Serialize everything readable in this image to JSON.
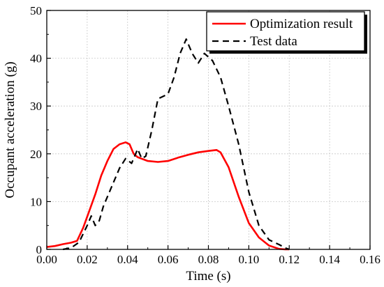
{
  "chart_data": {
    "type": "line",
    "title": "",
    "xlabel": "Time (s)",
    "ylabel": "Occupant acceleration (g)",
    "xlim": [
      0,
      0.16
    ],
    "ylim": [
      0,
      50
    ],
    "xticks": [
      "0.00",
      "0.02",
      "0.04",
      "0.06",
      "0.08",
      "0.10",
      "0.12",
      "0.14",
      "0.16"
    ],
    "yticks": [
      "0",
      "10",
      "20",
      "30",
      "40",
      "50"
    ],
    "grid": true,
    "legend_position": "top-right",
    "series": [
      {
        "name": "Optimization result",
        "color": "#ff0000",
        "style": "solid",
        "x": [
          0.0,
          0.004,
          0.008,
          0.012,
          0.015,
          0.018,
          0.021,
          0.024,
          0.027,
          0.03,
          0.033,
          0.036,
          0.039,
          0.041,
          0.043,
          0.045,
          0.05,
          0.055,
          0.06,
          0.065,
          0.07,
          0.075,
          0.08,
          0.084,
          0.086,
          0.09,
          0.095,
          0.1,
          0.105,
          0.11,
          0.115,
          0.118,
          0.12
        ],
        "y": [
          0.5,
          0.7,
          1.1,
          1.4,
          1.8,
          4.5,
          8.0,
          11.5,
          15.5,
          18.5,
          21.0,
          22.0,
          22.4,
          22.0,
          20.0,
          19.3,
          18.5,
          18.3,
          18.5,
          19.2,
          19.8,
          20.3,
          20.6,
          20.8,
          20.3,
          17.2,
          11.0,
          5.5,
          2.5,
          0.8,
          0.1,
          0.0,
          0.0
        ]
      },
      {
        "name": "Test data",
        "color": "#000000",
        "style": "dashed",
        "x": [
          0.008,
          0.012,
          0.016,
          0.02,
          0.022,
          0.024,
          0.026,
          0.028,
          0.031,
          0.033,
          0.036,
          0.039,
          0.042,
          0.045,
          0.047,
          0.049,
          0.052,
          0.055,
          0.06,
          0.063,
          0.066,
          0.069,
          0.072,
          0.075,
          0.078,
          0.082,
          0.086,
          0.09,
          0.095,
          0.1,
          0.105,
          0.11,
          0.115,
          0.118,
          0.12
        ],
        "y": [
          0.0,
          0.3,
          1.5,
          5.0,
          7.0,
          5.0,
          6.0,
          9.0,
          12.0,
          14.0,
          17.0,
          19.0,
          18.0,
          21.0,
          19.0,
          19.5,
          25.0,
          31.5,
          32.5,
          36.0,
          41.0,
          44.0,
          41.0,
          39.0,
          41.0,
          39.5,
          36.0,
          30.0,
          22.0,
          12.0,
          5.0,
          2.0,
          1.0,
          0.3,
          0.0
        ]
      }
    ]
  }
}
